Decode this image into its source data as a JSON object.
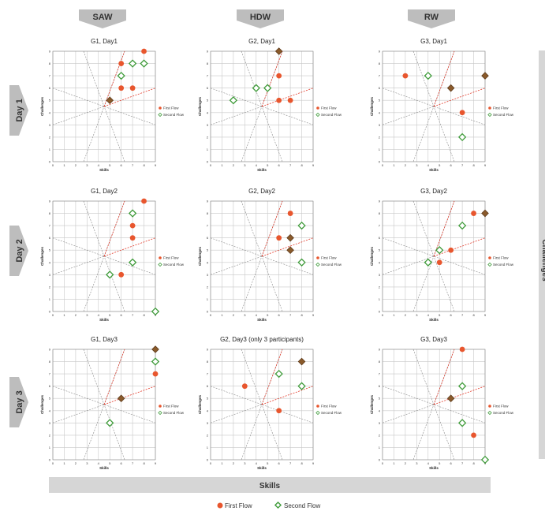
{
  "columns": [
    "SAW",
    "HDW",
    "RW"
  ],
  "rows": [
    "Day 1",
    "Day 2",
    "Day 3"
  ],
  "x_axis_big_label": "Skills",
  "y_axis_big_label": "Challenges",
  "legend": {
    "first": "First Flow",
    "second": "Second Flow"
  },
  "colors": {
    "first": "#e8562e",
    "second": "#3f9b3a",
    "overlap": "#8a5a2b"
  },
  "chart_data": [
    {
      "type": "scatter",
      "title": "G1, Day1",
      "xlabel": "Skills",
      "ylabel": "Challenges",
      "xlim": [
        0,
        9
      ],
      "ylim": [
        0,
        9
      ],
      "xticks": [
        0,
        1,
        2,
        3,
        4,
        5,
        6,
        7,
        8,
        9
      ],
      "yticks": [
        0,
        1,
        2,
        3,
        4,
        5,
        6,
        7,
        8,
        9
      ],
      "legend_position": "right",
      "series": [
        {
          "name": "First Flow",
          "points": [
            [
              6,
              8
            ],
            [
              8,
              9
            ],
            [
              6,
              6
            ],
            [
              7,
              6
            ],
            [
              5,
              5
            ]
          ]
        },
        {
          "name": "Second Flow",
          "points": [
            [
              7,
              8
            ],
            [
              8,
              8
            ],
            [
              6,
              7
            ],
            [
              5,
              5
            ]
          ]
        }
      ]
    },
    {
      "type": "scatter",
      "title": "G2, Day1",
      "xlabel": "Skills",
      "ylabel": "Challenges",
      "xlim": [
        0,
        9
      ],
      "ylim": [
        0,
        9
      ],
      "xticks": [
        0,
        1,
        2,
        3,
        4,
        5,
        6,
        7,
        8,
        9
      ],
      "yticks": [
        0,
        1,
        2,
        3,
        4,
        5,
        6,
        7,
        8,
        9
      ],
      "legend_position": "right",
      "series": [
        {
          "name": "First Flow",
          "points": [
            [
              6,
              9
            ],
            [
              6,
              7
            ],
            [
              6,
              5
            ],
            [
              7,
              5
            ]
          ]
        },
        {
          "name": "Second Flow",
          "points": [
            [
              6,
              9
            ],
            [
              2,
              5
            ],
            [
              4,
              6
            ],
            [
              5,
              6
            ]
          ]
        }
      ]
    },
    {
      "type": "scatter",
      "title": "G3, Day1",
      "xlabel": "Skills",
      "ylabel": "Challenges",
      "xlim": [
        0,
        9
      ],
      "ylim": [
        0,
        9
      ],
      "xticks": [
        0,
        1,
        2,
        3,
        4,
        5,
        6,
        7,
        8,
        9
      ],
      "yticks": [
        0,
        1,
        2,
        3,
        4,
        5,
        6,
        7,
        8,
        9
      ],
      "legend_position": "right",
      "series": [
        {
          "name": "First Flow",
          "points": [
            [
              2,
              7
            ],
            [
              6,
              6
            ],
            [
              9,
              7
            ],
            [
              7,
              4
            ]
          ]
        },
        {
          "name": "Second Flow",
          "points": [
            [
              4,
              7
            ],
            [
              6,
              6
            ],
            [
              9,
              7
            ],
            [
              7,
              2
            ]
          ]
        }
      ]
    },
    {
      "type": "scatter",
      "title": "G1, Day2",
      "xlabel": "Skills",
      "ylabel": "Challenges",
      "xlim": [
        0,
        9
      ],
      "ylim": [
        0,
        9
      ],
      "xticks": [
        0,
        1,
        2,
        3,
        4,
        5,
        6,
        7,
        8,
        9
      ],
      "yticks": [
        0,
        1,
        2,
        3,
        4,
        5,
        6,
        7,
        8,
        9
      ],
      "legend_position": "right",
      "series": [
        {
          "name": "First Flow",
          "points": [
            [
              8,
              9
            ],
            [
              7,
              7
            ],
            [
              7,
              6
            ],
            [
              6,
              3
            ]
          ]
        },
        {
          "name": "Second Flow",
          "points": [
            [
              7,
              8
            ],
            [
              7,
              4
            ],
            [
              5,
              3
            ],
            [
              9,
              0
            ]
          ]
        }
      ]
    },
    {
      "type": "scatter",
      "title": "G2, Day2",
      "xlabel": "Skills",
      "ylabel": "Challenges",
      "xlim": [
        0,
        9
      ],
      "ylim": [
        0,
        9
      ],
      "xticks": [
        0,
        1,
        2,
        3,
        4,
        5,
        6,
        7,
        8,
        9
      ],
      "yticks": [
        0,
        1,
        2,
        3,
        4,
        5,
        6,
        7,
        8,
        9
      ],
      "legend_position": "right",
      "series": [
        {
          "name": "First Flow",
          "points": [
            [
              7,
              8
            ],
            [
              6,
              6
            ],
            [
              7,
              6
            ],
            [
              7,
              5
            ]
          ]
        },
        {
          "name": "Second Flow",
          "points": [
            [
              8,
              7
            ],
            [
              7,
              6
            ],
            [
              7,
              5
            ],
            [
              8,
              4
            ]
          ]
        }
      ]
    },
    {
      "type": "scatter",
      "title": "G3, Day2",
      "xlabel": "Skills",
      "ylabel": "Challenges",
      "xlim": [
        0,
        9
      ],
      "ylim": [
        0,
        9
      ],
      "xticks": [
        0,
        1,
        2,
        3,
        4,
        5,
        6,
        7,
        8,
        9
      ],
      "yticks": [
        0,
        1,
        2,
        3,
        4,
        5,
        6,
        7,
        8,
        9
      ],
      "legend_position": "right",
      "series": [
        {
          "name": "First Flow",
          "points": [
            [
              8,
              8
            ],
            [
              9,
              8
            ],
            [
              6,
              5
            ],
            [
              5,
              4
            ]
          ]
        },
        {
          "name": "Second Flow",
          "points": [
            [
              9,
              8
            ],
            [
              7,
              7
            ],
            [
              5,
              5
            ],
            [
              4,
              4
            ]
          ]
        }
      ]
    },
    {
      "type": "scatter",
      "title": "G1, Day3",
      "xlabel": "Skills",
      "ylabel": "Challenges",
      "xlim": [
        0,
        9
      ],
      "ylim": [
        0,
        9
      ],
      "xticks": [
        0,
        1,
        2,
        3,
        4,
        5,
        6,
        7,
        8,
        9
      ],
      "yticks": [
        0,
        1,
        2,
        3,
        4,
        5,
        6,
        7,
        8,
        9
      ],
      "legend_position": "right",
      "series": [
        {
          "name": "First Flow",
          "points": [
            [
              9,
              9
            ],
            [
              9,
              7
            ],
            [
              6,
              5
            ]
          ]
        },
        {
          "name": "Second Flow",
          "points": [
            [
              9,
              9
            ],
            [
              9,
              8
            ],
            [
              6,
              5
            ],
            [
              5,
              3
            ]
          ]
        }
      ]
    },
    {
      "type": "scatter",
      "title": "G2, Day3 (only 3 participants)",
      "xlabel": "Skills",
      "ylabel": "Challenges",
      "xlim": [
        0,
        9
      ],
      "ylim": [
        0,
        9
      ],
      "xticks": [
        0,
        1,
        2,
        3,
        4,
        5,
        6,
        7,
        8,
        9
      ],
      "yticks": [
        0,
        1,
        2,
        3,
        4,
        5,
        6,
        7,
        8,
        9
      ],
      "legend_position": "right",
      "series": [
        {
          "name": "First Flow",
          "points": [
            [
              3,
              6
            ],
            [
              8,
              8
            ],
            [
              6,
              4
            ]
          ]
        },
        {
          "name": "Second Flow",
          "points": [
            [
              6,
              7
            ],
            [
              8,
              8
            ],
            [
              8,
              6
            ]
          ]
        }
      ]
    },
    {
      "type": "scatter",
      "title": "G3, Day3",
      "xlabel": "Skills",
      "ylabel": "Challenges",
      "xlim": [
        0,
        9
      ],
      "ylim": [
        0,
        9
      ],
      "xticks": [
        0,
        1,
        2,
        3,
        4,
        5,
        6,
        7,
        8,
        9
      ],
      "yticks": [
        0,
        1,
        2,
        3,
        4,
        5,
        6,
        7,
        8,
        9
      ],
      "legend_position": "right",
      "series": [
        {
          "name": "First Flow",
          "points": [
            [
              7,
              9
            ],
            [
              6,
              5
            ],
            [
              8,
              2
            ]
          ]
        },
        {
          "name": "Second Flow",
          "points": [
            [
              7,
              6
            ],
            [
              6,
              5
            ],
            [
              7,
              3
            ],
            [
              9,
              0
            ]
          ]
        }
      ]
    }
  ]
}
